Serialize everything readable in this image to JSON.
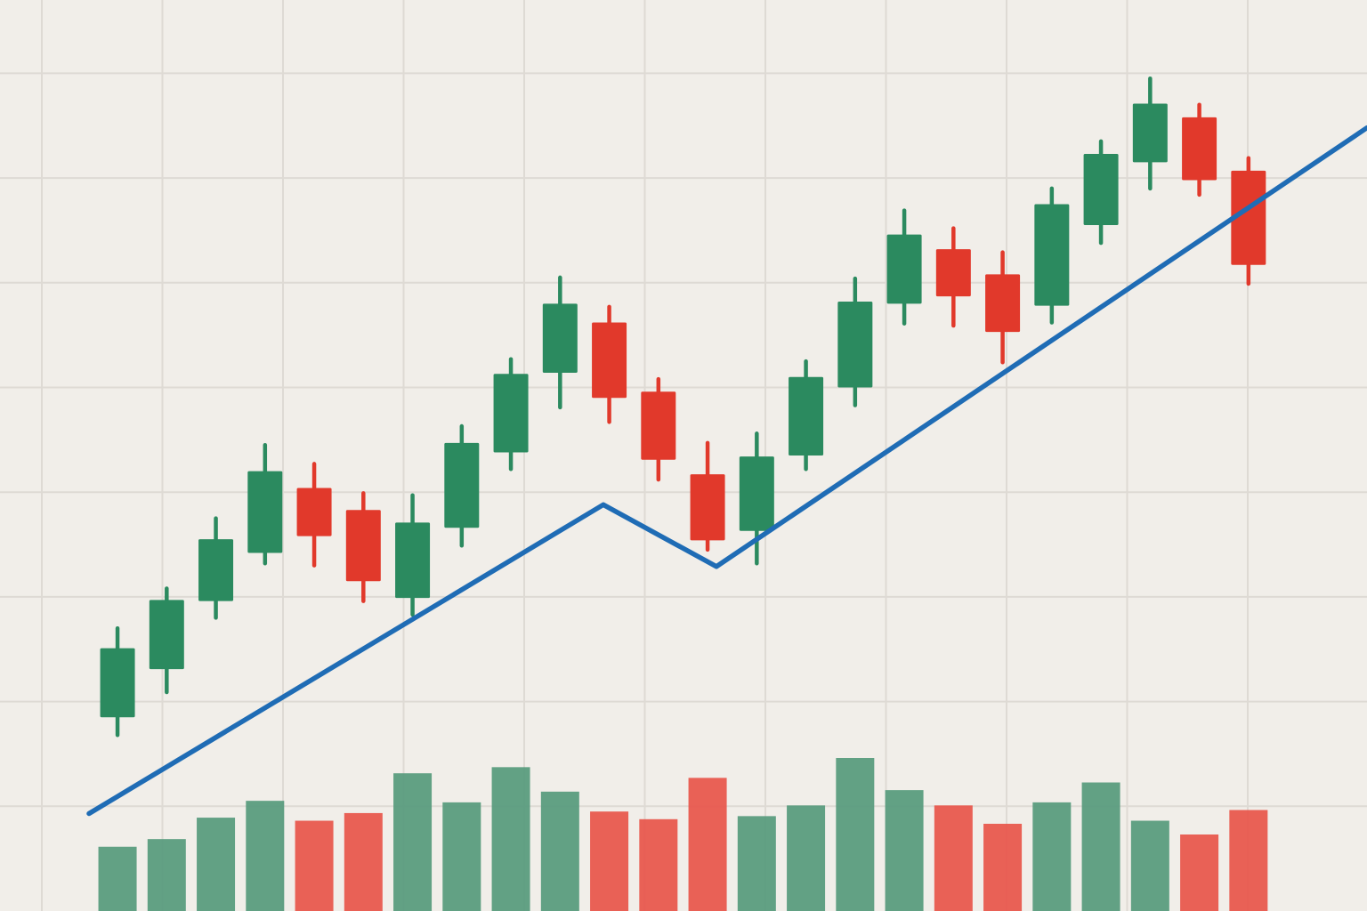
{
  "chart_data": {
    "type": "candlestick",
    "title": "",
    "xlabel": "",
    "ylabel": "",
    "x": [
      1,
      2,
      3,
      4,
      5,
      6,
      7,
      8,
      9,
      10,
      11,
      12,
      13,
      14,
      15,
      16,
      17,
      18,
      19,
      20,
      21,
      22,
      23,
      24
    ],
    "candles": [
      {
        "open": 18.5,
        "high": 27.0,
        "low": 16.8,
        "close": 25.1
      },
      {
        "open": 23.1,
        "high": 30.8,
        "low": 20.9,
        "close": 29.7
      },
      {
        "open": 29.6,
        "high": 37.5,
        "low": 28.0,
        "close": 35.5
      },
      {
        "open": 34.2,
        "high": 44.5,
        "low": 33.2,
        "close": 42.0
      },
      {
        "open": 40.4,
        "high": 42.7,
        "low": 33.0,
        "close": 35.8
      },
      {
        "open": 38.3,
        "high": 39.9,
        "low": 29.6,
        "close": 31.5
      },
      {
        "open": 29.9,
        "high": 39.7,
        "low": 28.3,
        "close": 37.1
      },
      {
        "open": 36.6,
        "high": 46.3,
        "low": 34.9,
        "close": 44.7
      },
      {
        "open": 43.8,
        "high": 52.7,
        "low": 42.2,
        "close": 51.3
      },
      {
        "open": 51.4,
        "high": 60.5,
        "low": 48.1,
        "close": 58.0
      },
      {
        "open": 56.2,
        "high": 57.7,
        "low": 46.7,
        "close": 49.0
      },
      {
        "open": 49.6,
        "high": 50.8,
        "low": 41.2,
        "close": 43.1
      },
      {
        "open": 41.7,
        "high": 44.7,
        "low": 34.5,
        "close": 35.4
      },
      {
        "open": 36.3,
        "high": 45.6,
        "low": 33.2,
        "close": 43.4
      },
      {
        "open": 43.5,
        "high": 52.5,
        "low": 42.2,
        "close": 51.0
      },
      {
        "open": 50.0,
        "high": 60.4,
        "low": 48.3,
        "close": 58.2
      },
      {
        "open": 58.0,
        "high": 66.9,
        "low": 56.1,
        "close": 64.6
      },
      {
        "open": 63.2,
        "high": 65.2,
        "low": 55.9,
        "close": 58.7
      },
      {
        "open": 60.8,
        "high": 62.9,
        "low": 52.4,
        "close": 55.3
      },
      {
        "open": 57.8,
        "high": 69.0,
        "low": 56.2,
        "close": 67.5
      },
      {
        "open": 65.5,
        "high": 73.5,
        "low": 63.8,
        "close": 72.3
      },
      {
        "open": 71.5,
        "high": 79.5,
        "low": 69.0,
        "close": 77.1
      },
      {
        "open": 75.8,
        "high": 77.0,
        "low": 68.4,
        "close": 69.8
      },
      {
        "open": 70.7,
        "high": 71.9,
        "low": 59.9,
        "close": 61.7
      }
    ],
    "volume": [
      42,
      47,
      61,
      72,
      59,
      64,
      90,
      71,
      94,
      78,
      65,
      60,
      87,
      62,
      69,
      100,
      79,
      69,
      57,
      71,
      84,
      59,
      50,
      66
    ],
    "trend_line": [
      [
        0.42,
        9.3
      ],
      [
        10.88,
        38.8
      ],
      [
        13.18,
        32.9
      ],
      [
        26.41,
        74.8
      ]
    ],
    "xlim": [
      -1.39,
      26.41
    ],
    "ylim": [
      0,
      87
    ],
    "volume_ylim": [
      0,
      100
    ],
    "grid": true,
    "legend": "none"
  },
  "colors": {
    "background": "#f1eee9",
    "grid": "#dedad4",
    "up": "#2b8a5f",
    "down": "#e1392b",
    "volume_up": "#5a9c7e",
    "volume_down": "#e8584e",
    "trend": "#1f6cb5"
  }
}
